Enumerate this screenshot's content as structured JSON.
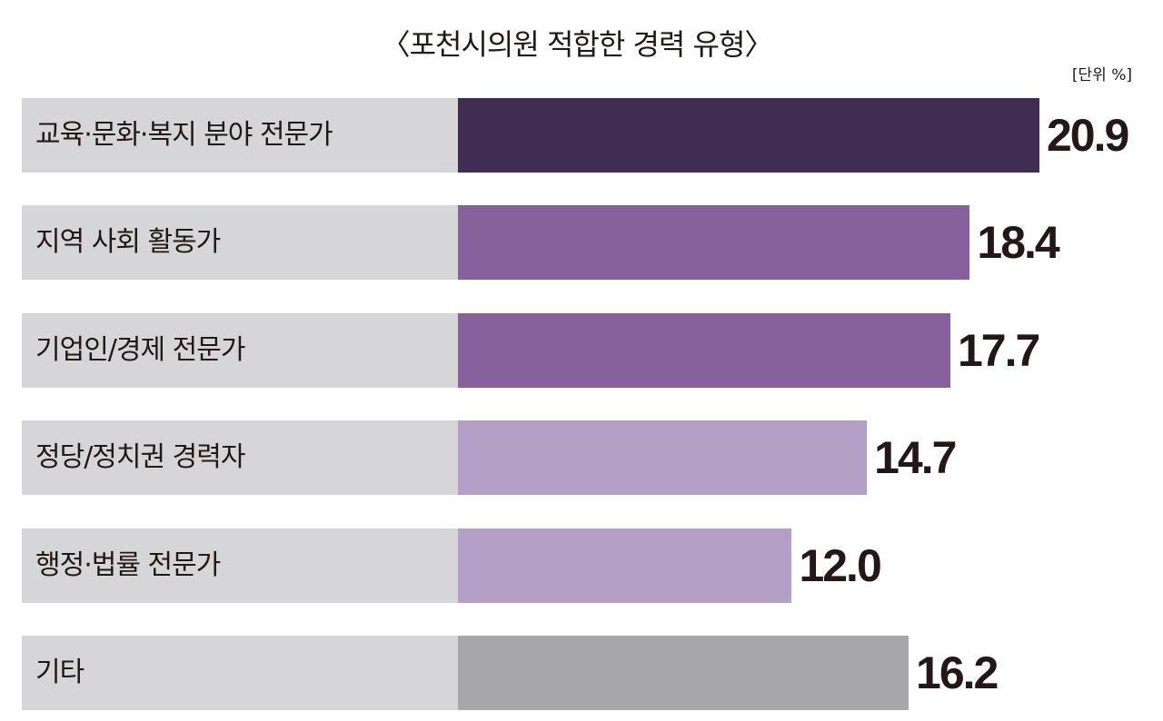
{
  "chart_data": {
    "type": "bar",
    "orientation": "horizontal",
    "title": "〈포천시의원 적합한 경력 유형〉",
    "unit": "[단위 %]",
    "xlabel": "",
    "ylabel": "",
    "xlim": [
      0,
      21
    ],
    "categories": [
      "교육·문화·복지 분야 전문가",
      "지역 사회 활동가",
      "기업인/경제 전문가",
      "정당/정치권 경력자",
      "행정·법률 전문가",
      "기타"
    ],
    "values": [
      20.9,
      18.4,
      17.7,
      14.7,
      12.0,
      16.2
    ],
    "value_labels": [
      "20.9",
      "18.4",
      "17.7",
      "14.7",
      "12.0",
      "16.2"
    ],
    "colors": [
      "#422d52",
      "#86619c",
      "#86619c",
      "#b49fc7",
      "#b49fc7",
      "#a7a6a8"
    ]
  }
}
